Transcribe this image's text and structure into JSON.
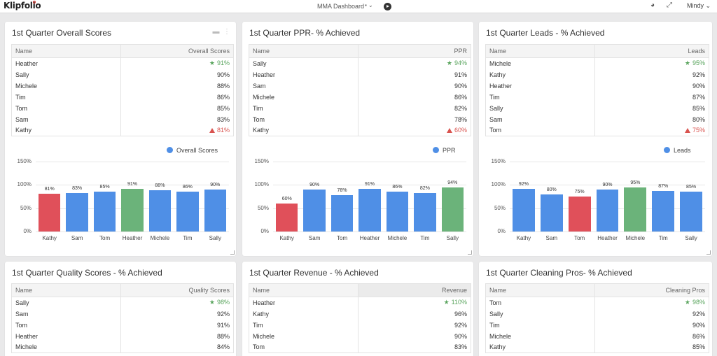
{
  "app": {
    "logo": "Klipfolio",
    "dashboard_title": "MMA Dashboard",
    "controls": "▪ ⌄",
    "user": "Mindy ⌄"
  },
  "colors": {
    "blue": "#4f8fe6",
    "green": "#6bb37a",
    "red": "#e0505a"
  },
  "cards": [
    {
      "title": "1st Quarter Overall Scores",
      "col_name": "Name",
      "col_value": "Overall Scores",
      "rows": [
        {
          "name": "Heather",
          "value": "91%",
          "status": "good"
        },
        {
          "name": "Sally",
          "value": "90%",
          "status": ""
        },
        {
          "name": "Michele",
          "value": "88%",
          "status": ""
        },
        {
          "name": "Tim",
          "value": "86%",
          "status": ""
        },
        {
          "name": "Tom",
          "value": "85%",
          "status": ""
        },
        {
          "name": "Sam",
          "value": "83%",
          "status": ""
        },
        {
          "name": "Kathy",
          "value": "81%",
          "status": "bad"
        }
      ],
      "chart_data": {
        "type": "bar",
        "legend": "Overall Scores",
        "categories": [
          "Kathy",
          "Sam",
          "Tom",
          "Heather",
          "Michele",
          "Tim",
          "Sally"
        ],
        "values": [
          81,
          83,
          85,
          91,
          88,
          86,
          90
        ],
        "labels": [
          "81%",
          "83%",
          "85%",
          "91%",
          "88%",
          "86%",
          "90%"
        ],
        "bar_colors": [
          "red",
          "blue",
          "blue",
          "green",
          "blue",
          "blue",
          "blue"
        ],
        "yticks": [
          "150%",
          "100%",
          "50%",
          "0%"
        ],
        "ylim": [
          0,
          150
        ]
      }
    },
    {
      "title": "1st Quarter PPR- % Achieved",
      "col_name": "Name",
      "col_value": "PPR",
      "rows": [
        {
          "name": "Sally",
          "value": "94%",
          "status": "good"
        },
        {
          "name": "Heather",
          "value": "91%",
          "status": ""
        },
        {
          "name": "Sam",
          "value": "90%",
          "status": ""
        },
        {
          "name": "Michele",
          "value": "86%",
          "status": ""
        },
        {
          "name": "Tim",
          "value": "82%",
          "status": ""
        },
        {
          "name": "Tom",
          "value": "78%",
          "status": ""
        },
        {
          "name": "Kathy",
          "value": "60%",
          "status": "bad"
        }
      ],
      "chart_data": {
        "type": "bar",
        "legend": "PPR",
        "categories": [
          "Kathy",
          "Sam",
          "Tom",
          "Heather",
          "Michele",
          "Tim",
          "Sally"
        ],
        "values": [
          60,
          90,
          78,
          91,
          86,
          82,
          94
        ],
        "labels": [
          "60%",
          "90%",
          "78%",
          "91%",
          "86%",
          "82%",
          "94%"
        ],
        "bar_colors": [
          "red",
          "blue",
          "blue",
          "blue",
          "blue",
          "blue",
          "green"
        ],
        "yticks": [
          "150%",
          "100%",
          "50%",
          "0%"
        ],
        "ylim": [
          0,
          150
        ]
      }
    },
    {
      "title": "1st Quarter Leads - % Achieved",
      "col_name": "Name",
      "col_value": "Leads",
      "rows": [
        {
          "name": "Michele",
          "value": "95%",
          "status": "good"
        },
        {
          "name": "Kathy",
          "value": "92%",
          "status": ""
        },
        {
          "name": "Heather",
          "value": "90%",
          "status": ""
        },
        {
          "name": "Tim",
          "value": "87%",
          "status": ""
        },
        {
          "name": "Sally",
          "value": "85%",
          "status": ""
        },
        {
          "name": "Sam",
          "value": "80%",
          "status": ""
        },
        {
          "name": "Tom",
          "value": "75%",
          "status": "bad"
        }
      ],
      "chart_data": {
        "type": "bar",
        "legend": "Leads",
        "categories": [
          "Kathy",
          "Sam",
          "Tom",
          "Heather",
          "Michele",
          "Tim",
          "Sally"
        ],
        "values": [
          92,
          80,
          75,
          90,
          95,
          87,
          85
        ],
        "labels": [
          "92%",
          "80%",
          "75%",
          "90%",
          "95%",
          "87%",
          "85%"
        ],
        "bar_colors": [
          "blue",
          "blue",
          "red",
          "blue",
          "green",
          "blue",
          "blue"
        ],
        "yticks": [
          "150%",
          "100%",
          "50%",
          "0%"
        ],
        "ylim": [
          0,
          150
        ]
      }
    },
    {
      "title": "1st Quarter Quality Scores - % Achieved",
      "col_name": "Name",
      "col_value": "Quality Scores",
      "rows": [
        {
          "name": "Sally",
          "value": "98%",
          "status": "good"
        },
        {
          "name": "Sam",
          "value": "92%",
          "status": ""
        },
        {
          "name": "Tom",
          "value": "91%",
          "status": ""
        },
        {
          "name": "Heather",
          "value": "88%",
          "status": ""
        },
        {
          "name": "Michele",
          "value": "84%",
          "status": ""
        }
      ]
    },
    {
      "title": "1st Quarter Revenue - % Achieved",
      "col_name": "Name",
      "col_value": "Revenue",
      "rows": [
        {
          "name": "Heather",
          "value": "110%",
          "status": "good"
        },
        {
          "name": "Kathy",
          "value": "96%",
          "status": ""
        },
        {
          "name": "Tim",
          "value": "92%",
          "status": ""
        },
        {
          "name": "Michele",
          "value": "90%",
          "status": ""
        },
        {
          "name": "Tom",
          "value": "83%",
          "status": ""
        }
      ]
    },
    {
      "title": "1st Quarter Cleaning Pros- % Achieved",
      "col_name": "Name",
      "col_value": "Cleaning Pros",
      "rows": [
        {
          "name": "Tom",
          "value": "98%",
          "status": "good"
        },
        {
          "name": "Sally",
          "value": "92%",
          "status": ""
        },
        {
          "name": "Tim",
          "value": "90%",
          "status": ""
        },
        {
          "name": "Michele",
          "value": "86%",
          "status": ""
        },
        {
          "name": "Kathy",
          "value": "85%",
          "status": ""
        }
      ]
    }
  ]
}
